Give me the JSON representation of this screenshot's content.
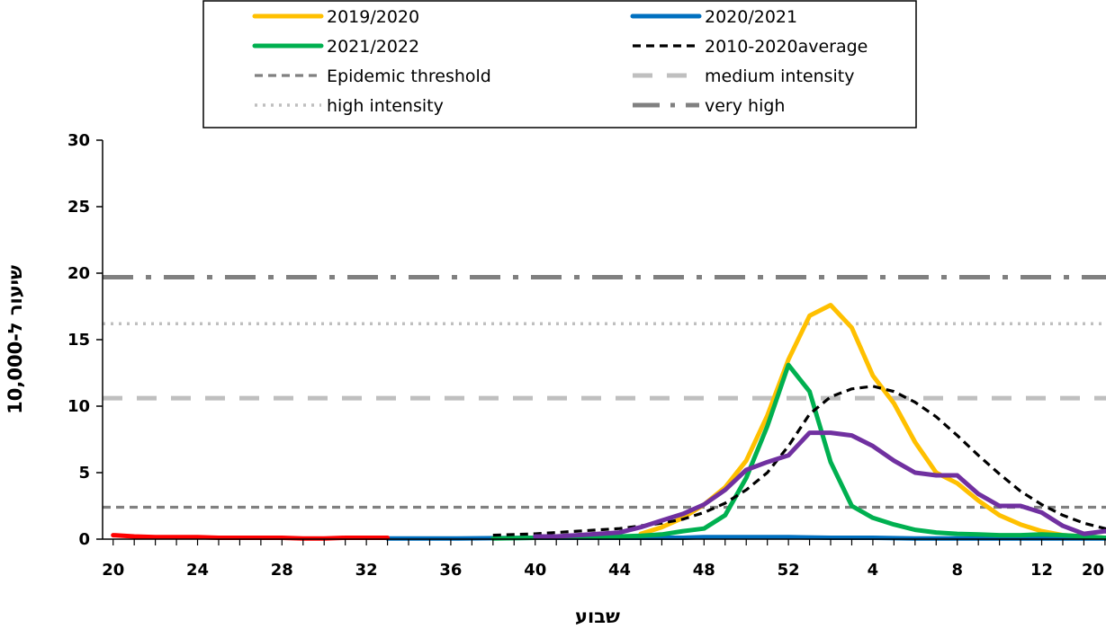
{
  "chart_data": {
    "type": "line",
    "xlabel": "שבוע",
    "ylabel": "שיעור ל-10,000",
    "ylim": [
      0,
      30
    ],
    "yticks": [
      "0",
      "5",
      "10",
      "15",
      "20",
      "25",
      "30"
    ],
    "xticks": [
      "20",
      "24",
      "28",
      "32",
      "36",
      "40",
      "44",
      "48",
      "52",
      "4",
      "8",
      "12",
      "16",
      "20"
    ],
    "grid": false,
    "legend_position": "top",
    "legend": [
      {
        "label": "2019/2020",
        "color": "#FFC000",
        "style": "solid"
      },
      {
        "label": "2020/2021",
        "color": "#0070C0",
        "style": "solid"
      },
      {
        "label": "2021/2022",
        "color": "#00B050",
        "style": "solid"
      },
      {
        "label": "2010-2020average",
        "color": "#000000",
        "style": "dash"
      },
      {
        "label": "Epidemic threshold",
        "color": "#808080",
        "style": "dash"
      },
      {
        "label": "medium intensity",
        "color": "#BFBFBF",
        "style": "longdash"
      },
      {
        "label": "high intensity",
        "color": "#BFBFBF",
        "style": "dot"
      },
      {
        "label": "very high",
        "color": "#808080",
        "style": "dashdot"
      }
    ],
    "thresholds": [
      {
        "name": "Epidemic threshold",
        "value": 2.4,
        "color": "#808080",
        "style": "dash"
      },
      {
        "name": "medium intensity",
        "value": 10.6,
        "color": "#BFBFBF",
        "style": "longdash"
      },
      {
        "name": "high intensity",
        "value": 16.2,
        "color": "#BFBFBF",
        "style": "dot"
      },
      {
        "name": "very high",
        "value": 19.7,
        "color": "#808080",
        "style": "dashdot"
      }
    ],
    "series": [
      {
        "name": "2019/2020",
        "color": "#FFC000",
        "points": [
          [
            45,
            0.4
          ],
          [
            46,
            0.9
          ],
          [
            47,
            1.6
          ],
          [
            48,
            2.6
          ],
          [
            49,
            3.9
          ],
          [
            50,
            5.9
          ],
          [
            51,
            9.3
          ],
          [
            52,
            13.5
          ],
          [
            53,
            16.8
          ],
          [
            54,
            17.6
          ],
          [
            55,
            15.9
          ],
          [
            56,
            12.3
          ],
          [
            57,
            10.2
          ],
          [
            58,
            7.3
          ],
          [
            59,
            5.0
          ],
          [
            60,
            4.2
          ],
          [
            61,
            2.9
          ],
          [
            62,
            1.8
          ],
          [
            63,
            1.1
          ],
          [
            64,
            0.6
          ],
          [
            65,
            0.3
          ],
          [
            66,
            0.2
          ],
          [
            67,
            0.1
          ]
        ]
      },
      {
        "name": "2020/2021",
        "color": "#0070C0",
        "points": [
          [
            33,
            0.05
          ],
          [
            36,
            0.05
          ],
          [
            40,
            0.1
          ],
          [
            44,
            0.1
          ],
          [
            47,
            0.1
          ],
          [
            48,
            0.15
          ],
          [
            52,
            0.15
          ],
          [
            54,
            0.1
          ],
          [
            56,
            0.1
          ],
          [
            58,
            0.05
          ],
          [
            62,
            0.05
          ],
          [
            66,
            0.05
          ],
          [
            70,
            0.05
          ],
          [
            73,
            0.05
          ]
        ]
      },
      {
        "name": "2021/2022",
        "color": "#00B050",
        "points": [
          [
            38,
            0.05
          ],
          [
            40,
            0.1
          ],
          [
            42,
            0.15
          ],
          [
            44,
            0.2
          ],
          [
            45,
            0.25
          ],
          [
            46,
            0.35
          ],
          [
            47,
            0.6
          ],
          [
            48,
            0.8
          ],
          [
            49,
            1.8
          ],
          [
            50,
            4.6
          ],
          [
            51,
            8.5
          ],
          [
            52,
            13.1
          ],
          [
            53,
            11.1
          ],
          [
            54,
            5.8
          ],
          [
            55,
            2.5
          ],
          [
            56,
            1.6
          ],
          [
            57,
            1.1
          ],
          [
            58,
            0.7
          ],
          [
            59,
            0.5
          ],
          [
            60,
            0.4
          ],
          [
            61,
            0.35
          ],
          [
            62,
            0.3
          ],
          [
            63,
            0.3
          ],
          [
            64,
            0.35
          ],
          [
            65,
            0.3
          ],
          [
            66,
            0.2
          ],
          [
            67,
            0.1
          ],
          [
            68,
            0.1
          ],
          [
            70,
            0.1
          ],
          [
            72,
            0.1
          ],
          [
            73,
            0.2
          ]
        ]
      },
      {
        "name": "2010-2020average",
        "color": "#000000",
        "points": [
          [
            38,
            0.3
          ],
          [
            40,
            0.4
          ],
          [
            42,
            0.6
          ],
          [
            44,
            0.8
          ],
          [
            45,
            1.0
          ],
          [
            46,
            1.2
          ],
          [
            47,
            1.5
          ],
          [
            48,
            2.0
          ],
          [
            49,
            2.7
          ],
          [
            50,
            3.7
          ],
          [
            51,
            5.0
          ],
          [
            52,
            7.0
          ],
          [
            53,
            9.4
          ],
          [
            54,
            10.7
          ],
          [
            55,
            11.3
          ],
          [
            56,
            11.5
          ],
          [
            57,
            11.1
          ],
          [
            58,
            10.3
          ],
          [
            59,
            9.2
          ],
          [
            60,
            7.8
          ],
          [
            61,
            6.3
          ],
          [
            62,
            4.9
          ],
          [
            63,
            3.6
          ],
          [
            64,
            2.6
          ],
          [
            65,
            1.8
          ],
          [
            66,
            1.2
          ],
          [
            67,
            0.8
          ],
          [
            68,
            0.5
          ],
          [
            69,
            0.35
          ],
          [
            70,
            0.3
          ],
          [
            71,
            0.25
          ],
          [
            72,
            0.25
          ],
          [
            73,
            0.25
          ]
        ]
      },
      {
        "name": "",
        "color": "#7030A0",
        "points": [
          [
            40,
            0.2
          ],
          [
            41,
            0.2
          ],
          [
            42,
            0.3
          ],
          [
            43,
            0.4
          ],
          [
            44,
            0.5
          ],
          [
            45,
            0.9
          ],
          [
            46,
            1.4
          ],
          [
            47,
            1.9
          ],
          [
            48,
            2.6
          ],
          [
            49,
            3.7
          ],
          [
            50,
            5.2
          ],
          [
            51,
            5.8
          ],
          [
            52,
            6.3
          ],
          [
            53,
            8.0
          ],
          [
            54,
            8.0
          ],
          [
            55,
            7.8
          ],
          [
            56,
            7.0
          ],
          [
            57,
            5.9
          ],
          [
            58,
            5.0
          ],
          [
            59,
            4.8
          ],
          [
            60,
            4.8
          ],
          [
            61,
            3.4
          ],
          [
            62,
            2.5
          ],
          [
            63,
            2.5
          ],
          [
            64,
            2.0
          ],
          [
            65,
            1.0
          ],
          [
            66,
            0.4
          ],
          [
            67,
            0.6
          ],
          [
            68,
            0.4
          ],
          [
            69,
            0.5
          ],
          [
            70,
            0.5
          ]
        ]
      },
      {
        "name": "",
        "color": "#FF0000",
        "points": [
          [
            20,
            0.3
          ],
          [
            21,
            0.2
          ],
          [
            22,
            0.15
          ],
          [
            23,
            0.15
          ],
          [
            24,
            0.15
          ],
          [
            25,
            0.1
          ],
          [
            26,
            0.1
          ],
          [
            27,
            0.1
          ],
          [
            28,
            0.1
          ],
          [
            29,
            0.05
          ],
          [
            30,
            0.05
          ],
          [
            31,
            0.1
          ],
          [
            32,
            0.1
          ],
          [
            33,
            0.1
          ]
        ]
      }
    ]
  }
}
